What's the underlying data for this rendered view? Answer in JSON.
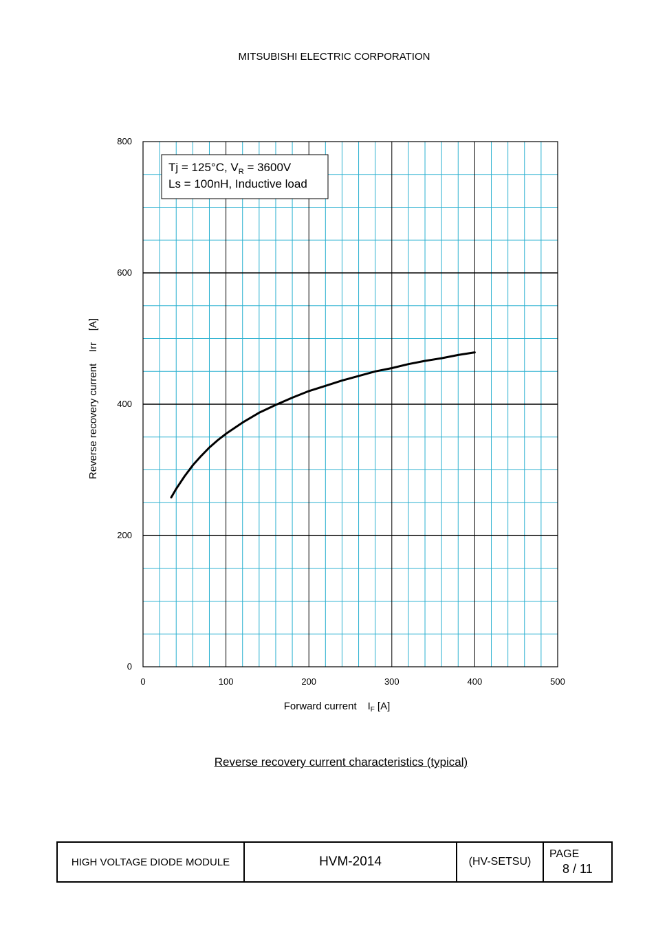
{
  "header": {
    "company": "MITSUBISHI ELECTRIC CORPORATION"
  },
  "chart_data": {
    "type": "line",
    "title": "",
    "caption": "Reverse recovery current characteristics (typical)",
    "xlabel": "Forward current",
    "xlabel_symbol": "I",
    "xlabel_subscript": "F",
    "xlabel_unit": "[A]",
    "ylabel": "Reverse recovery current    Irr    [A]",
    "xlim": [
      0,
      500
    ],
    "ylim": [
      0,
      800
    ],
    "x_ticks": [
      "0",
      "100",
      "200",
      "300",
      "400",
      "500"
    ],
    "y_ticks": [
      "0",
      "200",
      "400",
      "600",
      "800"
    ],
    "grid": true,
    "annotation": {
      "line1_a": "Tj = 125°C, V",
      "line1_sub": "R",
      "line1_b": " = 3600V",
      "line2": "Ls = 100nH, Inductive load"
    },
    "series": [
      {
        "x": [
          34,
          40,
          50,
          60,
          70,
          80,
          90,
          100,
          120,
          140,
          160,
          180,
          200,
          220,
          240,
          260,
          280,
          300,
          320,
          340,
          360,
          380,
          400
        ],
        "y": [
          258,
          271,
          290,
          307,
          321,
          334,
          345,
          355,
          372,
          387,
          399,
          410,
          420,
          428,
          436,
          443,
          450,
          455,
          461,
          466,
          470,
          475,
          479
        ]
      }
    ],
    "colors": {
      "major_grid": "#000000",
      "minor_grid": "#2ab0d0",
      "curve": "#000000"
    }
  },
  "footer": {
    "product": "HIGH VOLTAGE DIODE MODULE",
    "model": "HVM-2014",
    "doc_code": "(HV-SETSU)",
    "page_label": "PAGE",
    "page_number": "8 / 11"
  }
}
